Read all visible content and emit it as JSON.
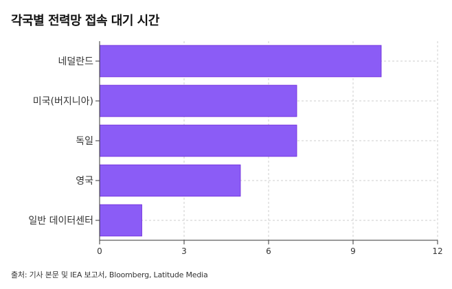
{
  "chart_data": {
    "type": "bar",
    "orientation": "horizontal",
    "title": "각국별 전력망 접속 대기 시간",
    "categories": [
      "네덜란드",
      "미국(버지니아)",
      "독일",
      "영국",
      "일반 데이터센터"
    ],
    "values": [
      10,
      7,
      7,
      5,
      1.5
    ],
    "xlim": [
      0,
      12
    ],
    "xticks": [
      0,
      3,
      6,
      9,
      12
    ],
    "xlabel": "",
    "ylabel": "",
    "grid": true,
    "bar_color": "#8b5cf6"
  },
  "source": "출처: 기사 본문 및 IEA 보고서, Bloomberg, Latitude Media",
  "colors": {
    "bar": "#8b5cf6",
    "bar_stroke": "#6d28d9",
    "grid": "#cccccc",
    "axis": "#333333"
  }
}
